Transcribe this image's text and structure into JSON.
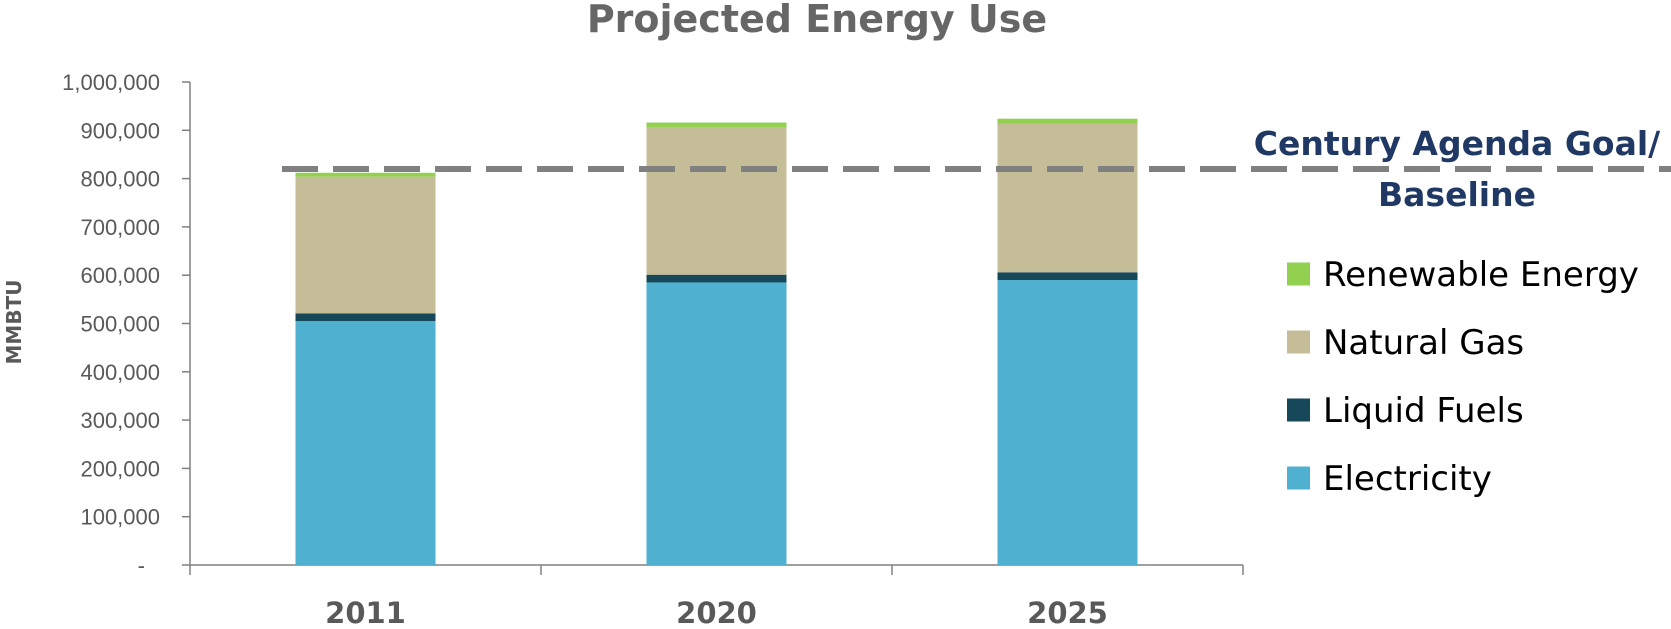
{
  "chart_data": {
    "type": "bar",
    "stacked": true,
    "title": "Projected Energy Use",
    "ylabel": "MMBTU",
    "xlabel": "",
    "categories": [
      "2011",
      "2020",
      "2025"
    ],
    "ylim": [
      0,
      1000000
    ],
    "yticks": [
      0,
      100000,
      200000,
      300000,
      400000,
      500000,
      600000,
      700000,
      800000,
      900000,
      1000000
    ],
    "ytick_labels": [
      "-",
      "100,000",
      "200,000",
      "300,000",
      "400,000",
      "500,000",
      "600,000",
      "700,000",
      "800,000",
      "900,000",
      "1,000,000"
    ],
    "series": [
      {
        "name": "Electricity",
        "color": "#4fb0d0",
        "values": [
          505000,
          585000,
          590000
        ]
      },
      {
        "name": "Liquid Fuels",
        "color": "#17485a",
        "values": [
          16000,
          16000,
          16000
        ]
      },
      {
        "name": "Natural Gas",
        "color": "#c4bd97",
        "values": [
          283000,
          305000,
          308000
        ]
      },
      {
        "name": "Renewable Energy",
        "color": "#92d050",
        "values": [
          8000,
          10000,
          10000
        ]
      }
    ],
    "reference_line": {
      "value": 820000,
      "color": "#808080",
      "style": "dashed",
      "label_line1": "Century Agenda Goal/",
      "label_line2": "Baseline"
    },
    "legend": {
      "placement": "right",
      "entries": [
        "Renewable Energy",
        "Natural Gas",
        "Liquid Fuels",
        "Electricity"
      ]
    },
    "grid": false
  }
}
